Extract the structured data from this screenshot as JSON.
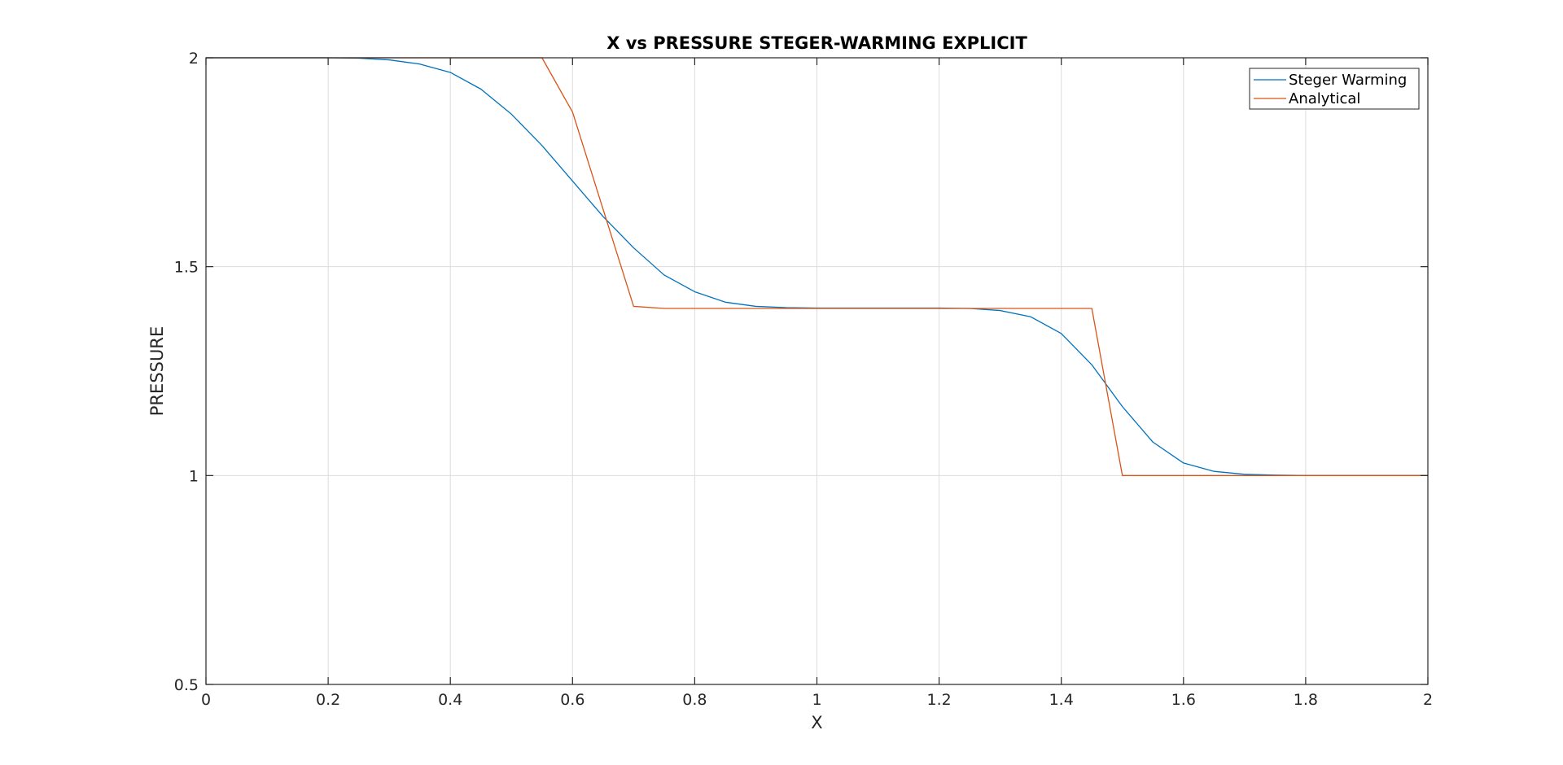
{
  "chart_data": {
    "type": "line",
    "title": "X vs PRESSURE STEGER-WARMING EXPLICIT",
    "xlabel": "X",
    "ylabel": "PRESSURE",
    "xlim": [
      0,
      2
    ],
    "ylim": [
      0.5,
      2
    ],
    "xticks": [
      0,
      0.2,
      0.4,
      0.6,
      0.8,
      1,
      1.2,
      1.4,
      1.6,
      1.8,
      2
    ],
    "xtick_labels": [
      "0",
      "0.2",
      "0.4",
      "0.6",
      "0.8",
      "1",
      "1.2",
      "1.4",
      "1.6",
      "1.8",
      "2"
    ],
    "yticks": [
      0.5,
      1,
      1.5,
      2
    ],
    "ytick_labels": [
      "0.5",
      "1",
      "1.5",
      "2"
    ],
    "grid": true,
    "legend_position": "top-right",
    "series": [
      {
        "name": "Steger Warming",
        "color": "#0072BD",
        "x": [
          0,
          0.05,
          0.1,
          0.15,
          0.2,
          0.25,
          0.3,
          0.35,
          0.4,
          0.45,
          0.5,
          0.55,
          0.6,
          0.65,
          0.7,
          0.75,
          0.8,
          0.85,
          0.9,
          0.95,
          1.0,
          1.05,
          1.1,
          1.15,
          1.2,
          1.25,
          1.3,
          1.35,
          1.4,
          1.45,
          1.5,
          1.55,
          1.6,
          1.65,
          1.7,
          1.75,
          1.8,
          1.85,
          1.9,
          1.95,
          2.0
        ],
        "y": [
          2.0,
          2.0,
          2.0,
          2.0,
          2.0,
          1.999,
          1.995,
          1.985,
          1.965,
          1.925,
          1.865,
          1.79,
          1.705,
          1.62,
          1.545,
          1.48,
          1.44,
          1.415,
          1.405,
          1.402,
          1.401,
          1.401,
          1.401,
          1.401,
          1.401,
          1.4,
          1.395,
          1.38,
          1.34,
          1.265,
          1.165,
          1.08,
          1.03,
          1.01,
          1.003,
          1.001,
          1.0,
          1.0,
          1.0,
          1.0,
          1.0
        ]
      },
      {
        "name": "Analytical",
        "color": "#D95319",
        "x": [
          0,
          0.55,
          0.6,
          0.7,
          0.75,
          1.45,
          1.5,
          2.0
        ],
        "y": [
          2.0,
          2.0,
          1.87,
          1.405,
          1.4,
          1.4,
          1.0,
          1.0
        ]
      }
    ]
  }
}
